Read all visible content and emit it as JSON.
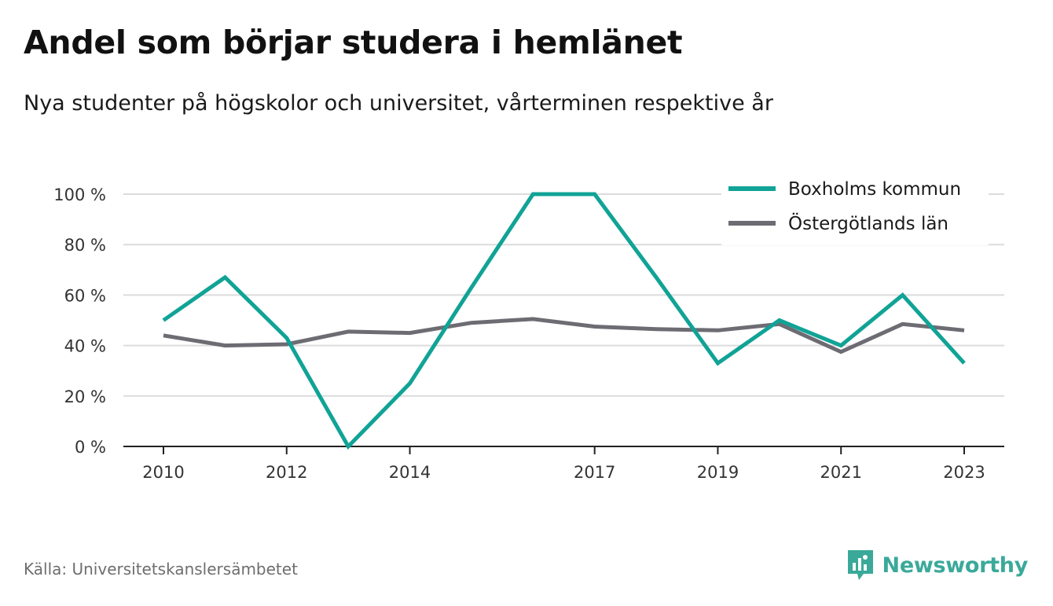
{
  "title": "Andel som börjar studera i hemlänet",
  "subtitle": "Nya studenter på högskolor och universitet, vårterminen respektive år",
  "source": "Källa: Universitetskanslersämbetet",
  "brand": {
    "name": "Newsworthy",
    "icon": "newsworthy-logo-icon",
    "color": "#3aa99a"
  },
  "chart_data": {
    "type": "line",
    "x": [
      2010,
      2011,
      2012,
      2013,
      2014,
      2015,
      2016,
      2017,
      2018,
      2019,
      2020,
      2021,
      2022,
      2023
    ],
    "x_tick_values": [
      2010,
      2012,
      2014,
      2017,
      2019,
      2021,
      2023
    ],
    "x_tick_labels": [
      "2010",
      "2012",
      "2014",
      "2017",
      "2019",
      "2021",
      "2023"
    ],
    "y_ticks": [
      0,
      20,
      40,
      60,
      80,
      100
    ],
    "y_tick_labels": [
      "0 %",
      "20 %",
      "40 %",
      "60 %",
      "80 %",
      "100 %"
    ],
    "ylim": [
      0,
      100
    ],
    "grid": true,
    "legend_position": "top-right",
    "series": [
      {
        "name": "Boxholms kommun",
        "color": "#10a396",
        "values": [
          50,
          67,
          43,
          0,
          25,
          63,
          100,
          100,
          67,
          33,
          50,
          40,
          60,
          33
        ]
      },
      {
        "name": "Östergötlands län",
        "color": "#6d6c73",
        "values": [
          44,
          40,
          40.5,
          45.5,
          45,
          49,
          50.5,
          47.5,
          46.5,
          46,
          48.5,
          37.5,
          48.5,
          46
        ]
      }
    ]
  }
}
